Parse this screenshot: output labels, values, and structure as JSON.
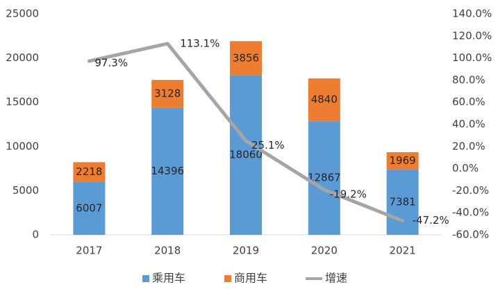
{
  "chart_data": {
    "type": "bar",
    "stacked": true,
    "categories": [
      "2017",
      "2018",
      "2019",
      "2020",
      "2021"
    ],
    "series": [
      {
        "name": "乘用车",
        "type": "bar",
        "axis": "left",
        "color": "#5B9BD5",
        "values": [
          6007,
          14396,
          18060,
          12867,
          7381
        ],
        "labels": [
          "6007",
          "14396",
          "18060",
          "12867",
          "7381"
        ]
      },
      {
        "name": "商用车",
        "type": "bar",
        "axis": "left",
        "color": "#ED7D31",
        "values": [
          2218,
          3128,
          3856,
          4840,
          1969
        ],
        "labels": [
          "2218",
          "3128",
          "3856",
          "4840",
          "1969"
        ]
      },
      {
        "name": "增速",
        "type": "line",
        "axis": "right",
        "color": "#A5A5A5",
        "values": [
          97.3,
          113.1,
          25.1,
          -19.2,
          -47.2
        ],
        "labels": [
          "97.3%",
          "113.1%",
          "25.1%",
          "-19.2%",
          "-47.2%"
        ]
      }
    ],
    "y_left": {
      "range": [
        0,
        25000
      ],
      "ticks": [
        "0",
        "5000",
        "10000",
        "15000",
        "20000",
        "25000"
      ]
    },
    "y_right": {
      "range": [
        -60,
        140
      ],
      "ticks": [
        "-60.0%",
        "-40.0%",
        "-20.0%",
        "0.0%",
        "20.0%",
        "40.0%",
        "60.0%",
        "80.0%",
        "100.0%",
        "120.0%",
        "140.0%"
      ]
    },
    "grid": false,
    "legend": {
      "position": "bottom",
      "labels": [
        "乘用车",
        "商用车",
        "增速"
      ]
    },
    "title": "",
    "xlabel": "",
    "ylabel": ""
  }
}
